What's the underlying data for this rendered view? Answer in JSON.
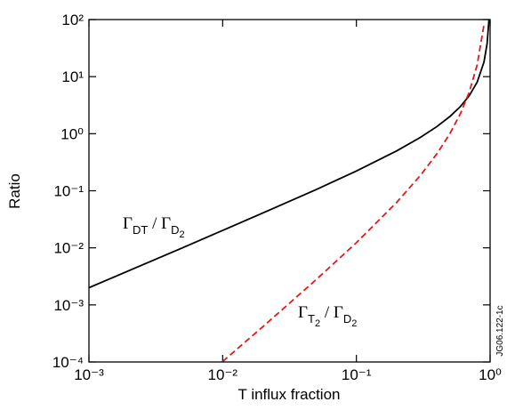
{
  "chart_data": {
    "type": "line",
    "xlabel": "T influx fraction",
    "ylabel": "Ratio",
    "x": [
      0.001,
      0.002,
      0.005,
      0.01,
      0.02,
      0.05,
      0.1,
      0.2,
      0.3,
      0.4,
      0.5,
      0.6,
      0.7,
      0.8,
      0.9,
      0.95,
      0.98
    ],
    "series": [
      {
        "color": "#000000",
        "dash": false,
        "values": [
          0.002,
          0.004,
          0.01,
          0.0202,
          0.0408,
          0.105,
          0.222,
          0.5,
          0.857,
          1.333,
          2,
          3,
          4.667,
          8,
          18,
          38,
          98
        ]
      },
      {
        "color": "#e0191e",
        "dash": true,
        "values": [
          null,
          null,
          null,
          0.000102,
          0.000416,
          0.00277,
          0.0123,
          0.0625,
          0.184,
          0.444,
          1,
          2.25,
          5.44,
          16,
          81,
          null,
          null
        ]
      }
    ],
    "xlim": [
      0.001,
      1
    ],
    "ylim": [
      0.0001,
      100
    ],
    "xscale": "log",
    "yscale": "log",
    "xticks": [
      {
        "value": 0.001,
        "label": "10⁻³"
      },
      {
        "value": 0.01,
        "label": "10⁻²"
      },
      {
        "value": 0.1,
        "label": "10⁻¹"
      },
      {
        "value": 1,
        "label": "10⁰"
      }
    ],
    "yticks": [
      {
        "value": 0.0001,
        "label": "10⁻⁴"
      },
      {
        "value": 0.001,
        "label": "10⁻³"
      },
      {
        "value": 0.01,
        "label": "10⁻²"
      },
      {
        "value": 0.1,
        "label": "10⁻¹"
      },
      {
        "value": 1,
        "label": "10⁰"
      },
      {
        "value": 10,
        "label": "10¹"
      },
      {
        "value": 100,
        "label": "10²"
      }
    ],
    "annotations": [
      {
        "parts": [
          "Γ",
          "DT",
          " / Γ",
          "D",
          "2"
        ]
      },
      {
        "parts": [
          "Γ",
          "T",
          "2",
          " / Γ",
          "D",
          "2"
        ]
      }
    ],
    "figure_id": "JG06.122-1c"
  }
}
